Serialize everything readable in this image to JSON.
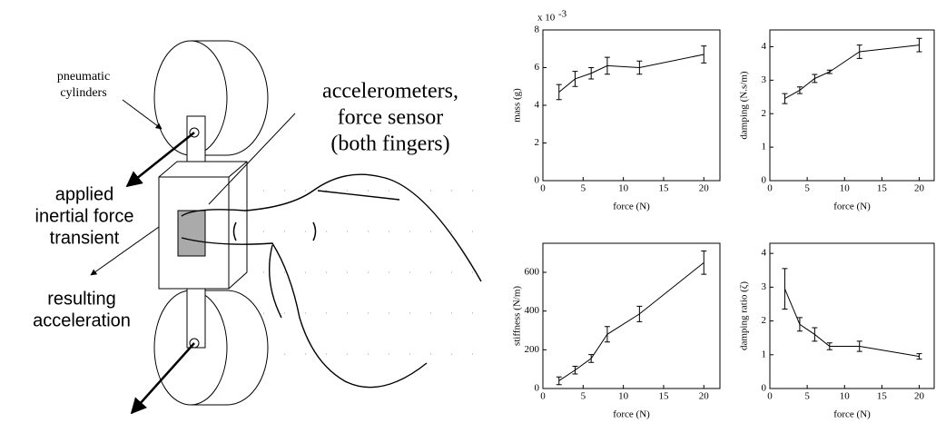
{
  "diagram": {
    "cylinders_label": [
      "pneumatic",
      "cylinders"
    ],
    "sensor_label": [
      "accelerometers,",
      "force sensor",
      "(both fingers)"
    ],
    "force_label": [
      "applied",
      "inertial force",
      "transient"
    ],
    "accel_label": [
      "resulting",
      "acceleration"
    ]
  },
  "chart_data": [
    {
      "type": "line",
      "x_label": "force (N)",
      "y_label": "mass (g)",
      "scale_label": "x 10",
      "scale_exponent": "-3",
      "x": [
        2,
        4,
        6,
        8,
        12,
        20
      ],
      "values": [
        4.7,
        5.4,
        5.7,
        6.1,
        6.0,
        6.7
      ],
      "errors": [
        0.4,
        0.4,
        0.3,
        0.45,
        0.35,
        0.45
      ],
      "color": "#000000",
      "xlim": [
        0,
        22
      ],
      "xticks": [
        0,
        5,
        10,
        15,
        20
      ],
      "ylim": [
        0,
        8
      ],
      "yticks": [
        0,
        2,
        4,
        6,
        8
      ]
    },
    {
      "type": "line",
      "x_label": "force (N)",
      "y_label": "damping (N.s/m)",
      "x": [
        2,
        4,
        6,
        8,
        12,
        20
      ],
      "values": [
        2.45,
        2.7,
        3.05,
        3.25,
        3.85,
        4.05
      ],
      "errors": [
        0.15,
        0.1,
        0.12,
        0.05,
        0.2,
        0.2
      ],
      "color": "#000000",
      "xlim": [
        0,
        22
      ],
      "xticks": [
        0,
        5,
        10,
        15,
        20
      ],
      "ylim": [
        0,
        4.5
      ],
      "yticks": [
        0,
        1,
        2,
        3,
        4
      ]
    },
    {
      "type": "line",
      "x_label": "force (N)",
      "y_label": "stiffness (N/m)",
      "x": [
        2,
        4,
        6,
        8,
        12,
        20
      ],
      "values": [
        40,
        95,
        155,
        280,
        385,
        650
      ],
      "errors": [
        20,
        20,
        20,
        40,
        40,
        60
      ],
      "color": "#000000",
      "xlim": [
        0,
        22
      ],
      "xticks": [
        0,
        5,
        10,
        15,
        20
      ],
      "ylim": [
        0,
        750
      ],
      "yticks": [
        0,
        200,
        400,
        600
      ]
    },
    {
      "type": "line",
      "x_label": "force (N)",
      "y_label": "damping ratio (ζ)",
      "x": [
        2,
        4,
        6,
        8,
        12,
        20
      ],
      "values": [
        2.95,
        1.9,
        1.6,
        1.25,
        1.25,
        0.95
      ],
      "errors": [
        0.6,
        0.2,
        0.2,
        0.1,
        0.15,
        0.08
      ],
      "color": "#000000",
      "xlim": [
        0,
        22
      ],
      "xticks": [
        0,
        5,
        10,
        15,
        20
      ],
      "ylim": [
        0,
        4.3
      ],
      "yticks": [
        0,
        1,
        2,
        3,
        4
      ]
    }
  ]
}
